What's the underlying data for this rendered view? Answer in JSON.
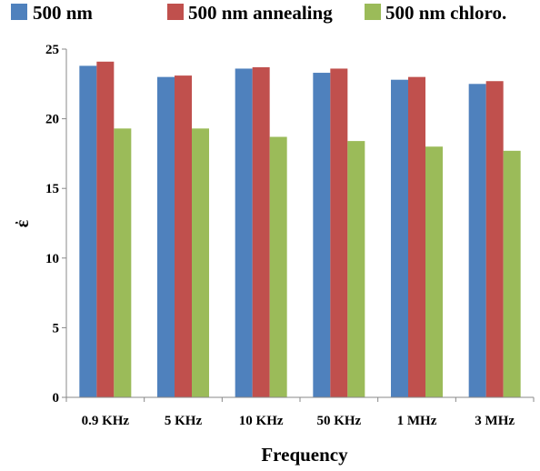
{
  "chart_data": {
    "type": "bar",
    "categories": [
      "0.9 KHz",
      "5 KHz",
      "10 KHz",
      "50 KHz",
      "1 MHz",
      "3 MHz"
    ],
    "series": [
      {
        "name": "500 nm",
        "color": "#4f81bd",
        "values": [
          23.8,
          23.0,
          23.6,
          23.3,
          22.8,
          22.5
        ]
      },
      {
        "name": "500 nm annealing",
        "color": "#c0504d",
        "values": [
          24.1,
          23.1,
          23.7,
          23.6,
          23.0,
          22.7
        ]
      },
      {
        "name": "500 nm chloro.",
        "color": "#9bbb59",
        "values": [
          19.3,
          19.3,
          18.7,
          18.4,
          18.0,
          17.7
        ]
      }
    ],
    "xlabel": "Frequency",
    "ylabel": "ἐ",
    "ylim": [
      0,
      25
    ],
    "yticks": [
      0,
      5,
      10,
      15,
      20,
      25
    ],
    "grid": false,
    "legend_position": "top"
  }
}
